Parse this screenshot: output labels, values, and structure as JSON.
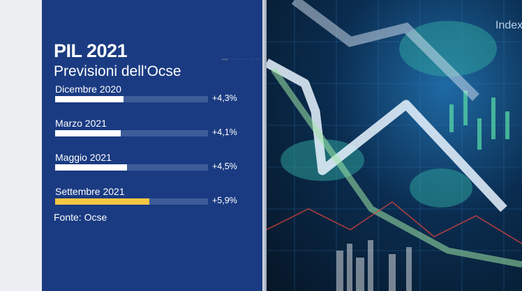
{
  "header": {
    "title": "PIL 2021",
    "subtitle": "Previsioni dell'Ocse"
  },
  "source": "Fonte: Ocse",
  "background_text": {
    "index": "Index"
  },
  "colors": {
    "panel": "#1a3b82",
    "bar": "#ffffff",
    "highlight": "#f7c744",
    "track": "#3e5c98"
  },
  "chart_data": {
    "type": "bar",
    "orientation": "horizontal",
    "title": "PIL 2021",
    "subtitle": "Previsioni dell'Ocse",
    "categories": [
      "Dicembre 2020",
      "Marzo 2021",
      "Maggio 2021",
      "Settembre 2021"
    ],
    "values": [
      4.3,
      4.1,
      4.5,
      5.9
    ],
    "value_labels": [
      "+4,3%",
      "+4,1%",
      "+4,5%",
      "+5,9%"
    ],
    "highlighted_index": 3,
    "xlim": [
      0,
      9.6
    ],
    "grid": false,
    "legend": "none"
  }
}
